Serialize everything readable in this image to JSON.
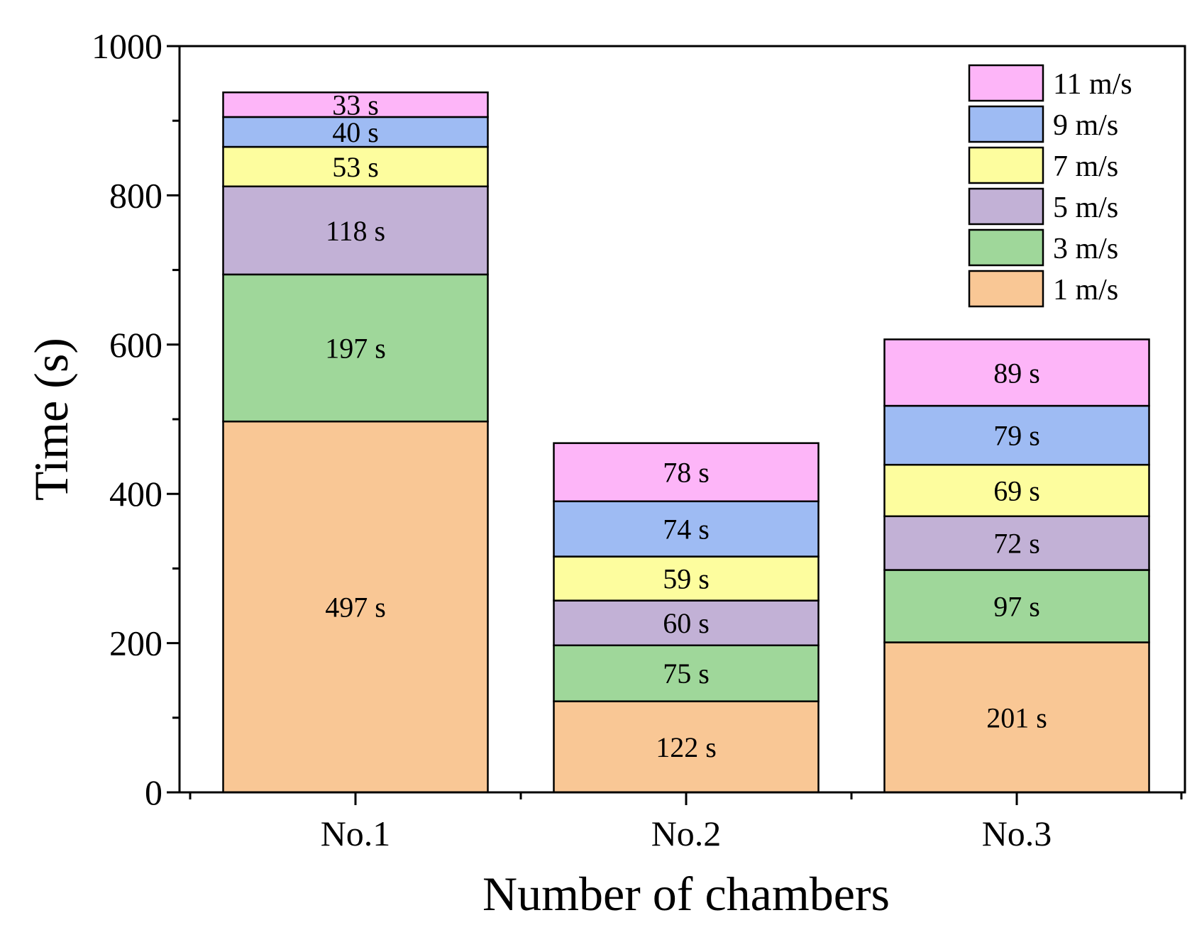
{
  "chart_data": {
    "type": "bar",
    "stacked": true,
    "xlabel": "Number of chambers",
    "ylabel": "Time (s)",
    "ylim": [
      0,
      1000
    ],
    "yticks": [
      0,
      200,
      400,
      600,
      800,
      1000
    ],
    "categories": [
      "No.1",
      "No.2",
      "No.3"
    ],
    "series": [
      {
        "name": "1 m/s",
        "color": "#F9C795",
        "values": [
          497,
          122,
          201
        ],
        "labels": [
          "497 s",
          "122 s",
          "201 s"
        ]
      },
      {
        "name": "3 m/s",
        "color": "#9FD79A",
        "values": [
          197,
          75,
          97
        ],
        "labels": [
          "197 s",
          "75 s",
          "97 s"
        ]
      },
      {
        "name": "5 m/s",
        "color": "#C2B1D6",
        "values": [
          118,
          60,
          72
        ],
        "labels": [
          "118 s",
          "60 s",
          "72 s"
        ]
      },
      {
        "name": "7 m/s",
        "color": "#FDFD9E",
        "values": [
          53,
          59,
          69
        ],
        "labels": [
          "53 s",
          "59 s",
          "69 s"
        ]
      },
      {
        "name": "9 m/s",
        "color": "#9EBBF3",
        "values": [
          40,
          74,
          79
        ],
        "labels": [
          "40 s",
          "74 s",
          "79 s"
        ]
      },
      {
        "name": "11 m/s",
        "color": "#FDB5F8",
        "values": [
          33,
          78,
          89
        ],
        "labels": [
          "33 s",
          "78 s",
          "89 s"
        ]
      }
    ],
    "legend_position": "top-right",
    "grid": false
  }
}
